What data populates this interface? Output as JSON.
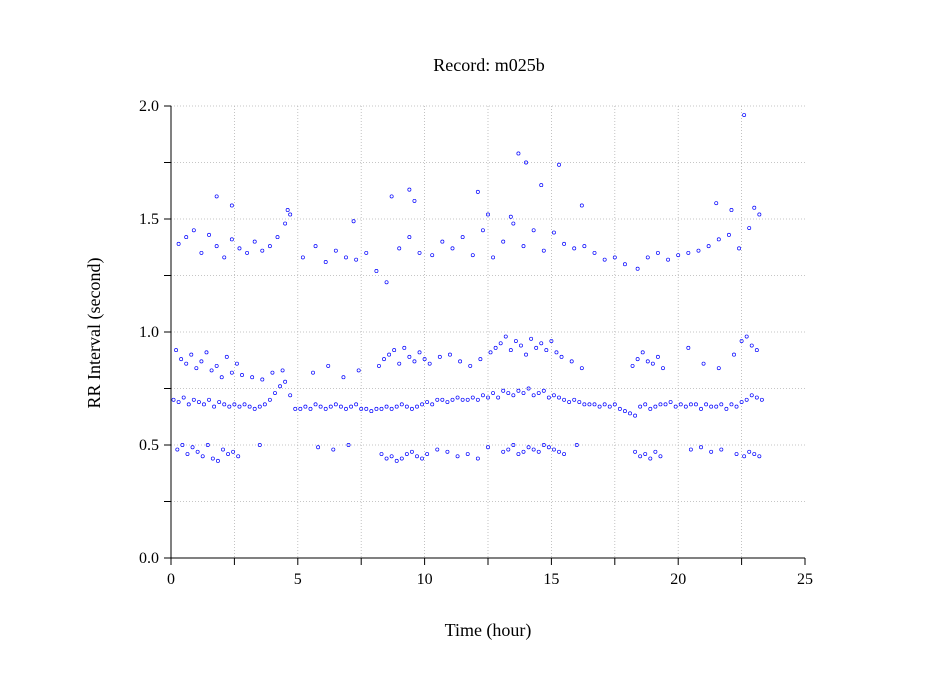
{
  "chart_data": {
    "type": "scatter",
    "title": "Record:  m025b",
    "xlabel": "Time (hour)",
    "ylabel": "RR Interval (second)",
    "xlim": [
      0,
      25
    ],
    "ylim": [
      0,
      2.0
    ],
    "x_ticks": [
      0,
      5,
      10,
      15,
      20,
      25
    ],
    "x_tick_labels": [
      "0",
      "5",
      "10",
      "15",
      "20",
      "25"
    ],
    "y_ticks": [
      0.0,
      0.5,
      1.0,
      1.5,
      2.0
    ],
    "y_tick_labels": [
      "0.0",
      "0.5",
      "1.0",
      "1.5",
      "2.0"
    ],
    "grid": true,
    "marker_color": "#0000ff",
    "series": [
      {
        "x": [
          0.1,
          0.3,
          0.5,
          0.7,
          0.9,
          1.1,
          1.3,
          1.5,
          1.7,
          1.9,
          2.1,
          2.3,
          2.5,
          2.7,
          2.9,
          3.1,
          3.3,
          3.5,
          3.7,
          3.9,
          4.1,
          4.3,
          4.5,
          4.7,
          4.9,
          5.1,
          5.3,
          5.5,
          5.7,
          5.9,
          6.1,
          6.3,
          6.5,
          6.7,
          6.9,
          7.1,
          7.3,
          7.5,
          7.7,
          7.9,
          8.1,
          8.3,
          8.5,
          8.7,
          8.9,
          9.1,
          9.3,
          9.5,
          9.7,
          9.9,
          10.1,
          10.3,
          10.5,
          10.7,
          10.9,
          11.1,
          11.3,
          11.5,
          11.7,
          11.9,
          12.1,
          12.3,
          12.5,
          12.7,
          12.9,
          13.1,
          13.3,
          13.5,
          13.7,
          13.9,
          14.1,
          14.3,
          14.5,
          14.7,
          14.9,
          15.1,
          15.3,
          15.5,
          15.7,
          15.9,
          16.1,
          16.3,
          16.5,
          16.7,
          16.9,
          17.1,
          17.3,
          17.5,
          17.7,
          17.9,
          18.1,
          18.3,
          18.5,
          18.7,
          18.9,
          19.1,
          19.3,
          19.5,
          19.7,
          19.9,
          20.1,
          20.3,
          20.5,
          20.7,
          20.9,
          21.1,
          21.3,
          21.5,
          21.7,
          21.9,
          22.1,
          22.3,
          22.5,
          22.7,
          22.9,
          23.1,
          23.3
        ],
        "y": [
          0.7,
          0.69,
          0.71,
          0.68,
          0.7,
          0.69,
          0.68,
          0.7,
          0.67,
          0.69,
          0.68,
          0.67,
          0.68,
          0.67,
          0.68,
          0.67,
          0.66,
          0.67,
          0.68,
          0.7,
          0.73,
          0.76,
          0.78,
          0.72,
          0.66,
          0.66,
          0.67,
          0.66,
          0.68,
          0.67,
          0.66,
          0.67,
          0.68,
          0.67,
          0.66,
          0.67,
          0.68,
          0.66,
          0.66,
          0.65,
          0.66,
          0.66,
          0.67,
          0.66,
          0.67,
          0.68,
          0.67,
          0.66,
          0.67,
          0.68,
          0.69,
          0.68,
          0.7,
          0.7,
          0.69,
          0.7,
          0.71,
          0.7,
          0.7,
          0.71,
          0.7,
          0.72,
          0.71,
          0.73,
          0.71,
          0.74,
          0.73,
          0.72,
          0.74,
          0.73,
          0.75,
          0.72,
          0.73,
          0.74,
          0.71,
          0.72,
          0.71,
          0.7,
          0.69,
          0.7,
          0.69,
          0.68,
          0.68,
          0.68,
          0.67,
          0.68,
          0.67,
          0.68,
          0.66,
          0.65,
          0.64,
          0.63,
          0.67,
          0.68,
          0.66,
          0.67,
          0.68,
          0.68,
          0.69,
          0.67,
          0.68,
          0.67,
          0.68,
          0.68,
          0.66,
          0.68,
          0.67,
          0.67,
          0.68,
          0.66,
          0.68,
          0.67,
          0.69,
          0.7,
          0.72,
          0.71,
          0.7
        ]
      },
      {
        "x": [
          0.2,
          0.4,
          0.6,
          0.8,
          1.0,
          1.2,
          1.4,
          1.6,
          1.8,
          2.0,
          2.2,
          2.4,
          2.6,
          2.8,
          3.2,
          3.6,
          4.0,
          4.4,
          5.6,
          6.2,
          6.8,
          7.4,
          8.2,
          8.4,
          8.6,
          8.8,
          9.0,
          9.2,
          9.4,
          9.6,
          9.8,
          10.0,
          10.2,
          10.6,
          11.0,
          11.4,
          11.8,
          12.2,
          12.6,
          12.8,
          13.0,
          13.2,
          13.4,
          13.6,
          13.8,
          14.0,
          14.2,
          14.4,
          14.6,
          14.8,
          15.0,
          15.2,
          15.4,
          15.8,
          16.2,
          18.2,
          18.4,
          18.6,
          18.8,
          19.0,
          19.2,
          19.4,
          20.4,
          21.0,
          21.6,
          22.2,
          22.5,
          22.7,
          22.9,
          23.1
        ],
        "y": [
          0.92,
          0.88,
          0.86,
          0.9,
          0.84,
          0.87,
          0.91,
          0.83,
          0.85,
          0.8,
          0.89,
          0.82,
          0.86,
          0.81,
          0.8,
          0.79,
          0.82,
          0.83,
          0.82,
          0.85,
          0.8,
          0.83,
          0.85,
          0.88,
          0.9,
          0.92,
          0.86,
          0.93,
          0.89,
          0.87,
          0.91,
          0.88,
          0.86,
          0.89,
          0.9,
          0.87,
          0.85,
          0.88,
          0.91,
          0.93,
          0.95,
          0.98,
          0.92,
          0.96,
          0.94,
          0.9,
          0.97,
          0.93,
          0.95,
          0.92,
          0.96,
          0.91,
          0.89,
          0.87,
          0.84,
          0.85,
          0.88,
          0.91,
          0.87,
          0.86,
          0.89,
          0.84,
          0.93,
          0.86,
          0.84,
          0.9,
          0.96,
          0.98,
          0.94,
          0.92
        ]
      },
      {
        "x": [
          0.25,
          0.45,
          0.65,
          0.85,
          1.05,
          1.25,
          1.45,
          1.65,
          1.85,
          2.05,
          2.25,
          2.45,
          2.65,
          3.5,
          5.8,
          6.4,
          7.0,
          8.3,
          8.5,
          8.7,
          8.9,
          9.1,
          9.3,
          9.5,
          9.7,
          9.9,
          10.1,
          10.5,
          10.9,
          11.3,
          11.7,
          12.1,
          12.5,
          13.1,
          13.3,
          13.5,
          13.7,
          13.9,
          14.1,
          14.3,
          14.5,
          14.7,
          14.9,
          15.1,
          15.3,
          15.5,
          16.0,
          18.3,
          18.5,
          18.7,
          18.9,
          19.1,
          19.3,
          20.5,
          20.9,
          21.3,
          21.7,
          22.3,
          22.6,
          22.8,
          23.0,
          23.2
        ],
        "y": [
          0.48,
          0.5,
          0.46,
          0.49,
          0.47,
          0.45,
          0.5,
          0.44,
          0.43,
          0.48,
          0.46,
          0.47,
          0.45,
          0.5,
          0.49,
          0.48,
          0.5,
          0.46,
          0.44,
          0.45,
          0.43,
          0.44,
          0.46,
          0.47,
          0.45,
          0.44,
          0.46,
          0.48,
          0.47,
          0.45,
          0.46,
          0.44,
          0.49,
          0.47,
          0.48,
          0.5,
          0.46,
          0.47,
          0.49,
          0.48,
          0.47,
          0.5,
          0.49,
          0.48,
          0.47,
          0.46,
          0.5,
          0.47,
          0.45,
          0.46,
          0.44,
          0.47,
          0.45,
          0.48,
          0.49,
          0.47,
          0.48,
          0.46,
          0.45,
          0.47,
          0.46,
          0.45
        ]
      },
      {
        "x": [
          0.3,
          0.6,
          0.9,
          1.2,
          1.5,
          1.8,
          2.1,
          2.4,
          2.7,
          3.0,
          3.3,
          3.6,
          3.9,
          4.2,
          4.5,
          4.7,
          5.2,
          5.7,
          6.1,
          6.5,
          6.9,
          7.3,
          7.7,
          8.1,
          8.5,
          9.0,
          9.4,
          9.8,
          10.3,
          10.7,
          11.1,
          11.5,
          11.9,
          12.3,
          12.7,
          13.1,
          13.5,
          13.9,
          14.3,
          14.7,
          15.1,
          15.5,
          15.9,
          16.3,
          16.7,
          17.1,
          17.5,
          17.9,
          18.4,
          18.8,
          19.2,
          19.6,
          20.0,
          20.4,
          20.8,
          21.2,
          21.6,
          22.0,
          22.4,
          22.8,
          23.0,
          23.2
        ],
        "y": [
          1.39,
          1.42,
          1.45,
          1.35,
          1.43,
          1.38,
          1.33,
          1.41,
          1.37,
          1.35,
          1.4,
          1.36,
          1.38,
          1.42,
          1.48,
          1.52,
          1.33,
          1.38,
          1.31,
          1.36,
          1.33,
          1.32,
          1.35,
          1.27,
          1.22,
          1.37,
          1.42,
          1.35,
          1.34,
          1.4,
          1.37,
          1.42,
          1.34,
          1.45,
          1.33,
          1.4,
          1.48,
          1.38,
          1.45,
          1.36,
          1.44,
          1.39,
          1.37,
          1.38,
          1.35,
          1.32,
          1.33,
          1.3,
          1.28,
          1.33,
          1.35,
          1.32,
          1.34,
          1.35,
          1.36,
          1.38,
          1.41,
          1.43,
          1.37,
          1.46,
          1.55,
          1.52
        ]
      },
      {
        "x": [
          1.8,
          2.4,
          4.6,
          7.2,
          8.7,
          9.4,
          9.6,
          12.1,
          12.5,
          13.4,
          13.7,
          14.0,
          14.6,
          15.3,
          16.2,
          21.5,
          22.1,
          22.6
        ],
        "y": [
          1.6,
          1.56,
          1.54,
          1.49,
          1.6,
          1.63,
          1.58,
          1.62,
          1.52,
          1.51,
          1.79,
          1.75,
          1.65,
          1.74,
          1.56,
          1.57,
          1.54,
          1.96
        ]
      }
    ]
  }
}
